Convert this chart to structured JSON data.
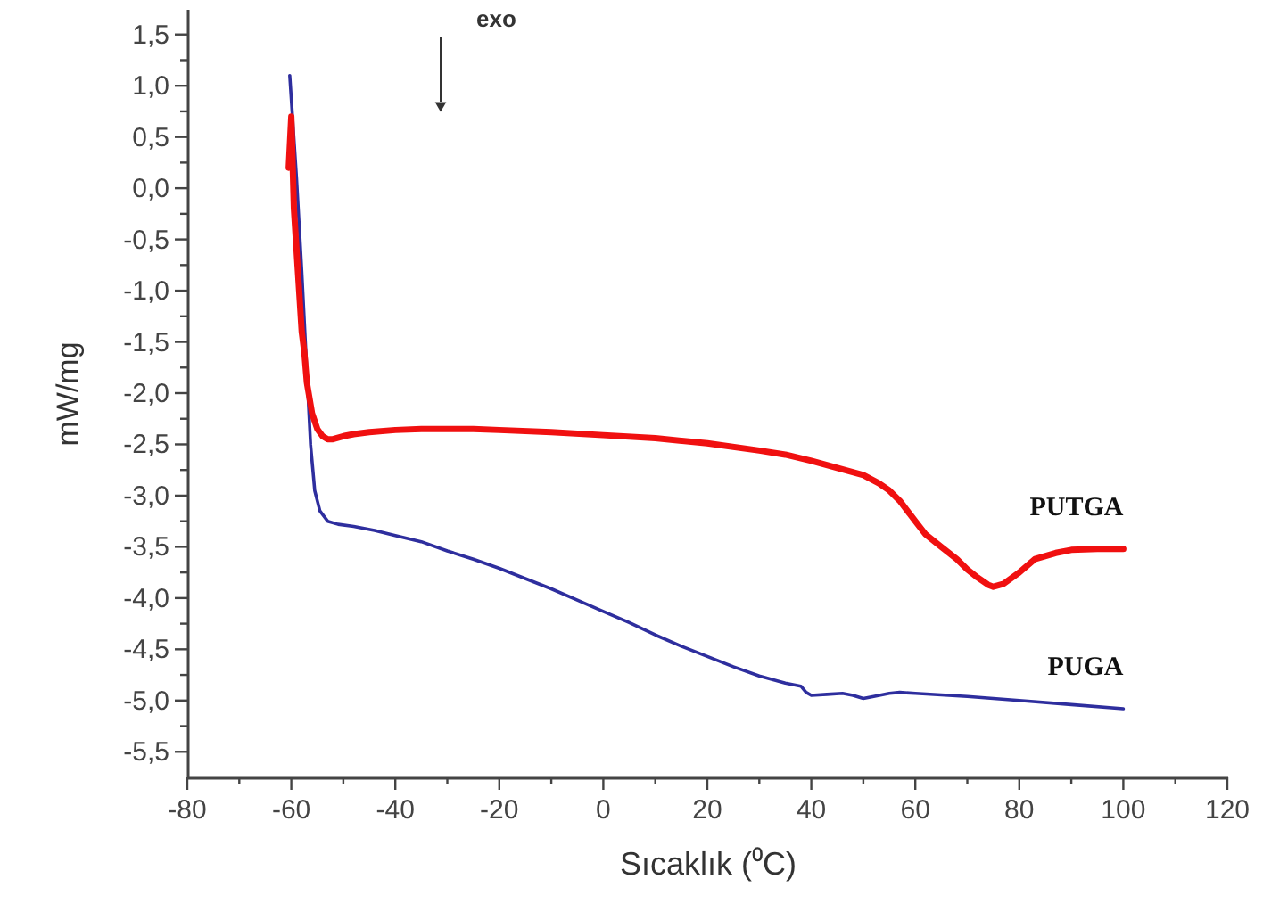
{
  "chart_data": {
    "type": "line",
    "xlabel": "Sıcaklık (⁰C)",
    "ylabel": "mW/mg",
    "annotations": [
      "exo"
    ],
    "legend": false,
    "grid": false,
    "marker": "none",
    "line_style": "solid",
    "xlim": [
      -80,
      120
    ],
    "ylim": [
      -5.75,
      1.75
    ],
    "xticks": [
      -80,
      {
        "value": -70,
        "label": null
      },
      -60,
      {
        "value": -50,
        "label": null
      },
      -40,
      {
        "value": -30,
        "label": null
      },
      -20,
      {
        "value": -10,
        "label": null
      },
      0,
      {
        "value": 10,
        "label": null
      },
      20,
      {
        "value": 30,
        "label": null
      },
      40,
      {
        "value": 50,
        "label": null
      },
      60,
      {
        "value": 70,
        "label": null
      },
      80,
      {
        "value": 90,
        "label": null
      },
      100,
      {
        "value": 110,
        "label": null
      },
      120
    ],
    "yticks": [
      {
        "value": 1.5,
        "label": "1,5"
      },
      {
        "value": 1.25,
        "label": null
      },
      {
        "value": 1,
        "label": "1,0"
      },
      {
        "value": 0.75,
        "label": null
      },
      {
        "value": 0.5,
        "label": "0,5"
      },
      {
        "value": 0.25,
        "label": null
      },
      {
        "value": 0,
        "label": "0,0"
      },
      {
        "value": -0.25,
        "label": null
      },
      {
        "value": -0.5,
        "label": "-0,5"
      },
      {
        "value": -0.75,
        "label": null
      },
      {
        "value": -1,
        "label": "-1,0"
      },
      {
        "value": -1.25,
        "label": null
      },
      {
        "value": -1.5,
        "label": "-1,5"
      },
      {
        "value": -1.75,
        "label": null
      },
      {
        "value": -2,
        "label": "-2,0"
      },
      {
        "value": -2.25,
        "label": null
      },
      {
        "value": -2.5,
        "label": "-2,5"
      },
      {
        "value": -2.75,
        "label": null
      },
      {
        "value": -3,
        "label": "-3,0"
      },
      {
        "value": -3.25,
        "label": null
      },
      {
        "value": -3.5,
        "label": "-3,5"
      },
      {
        "value": -3.75,
        "label": null
      },
      {
        "value": -4,
        "label": "-4,0"
      },
      {
        "value": -4.25,
        "label": null
      },
      {
        "value": -4.5,
        "label": "-4,5"
      },
      {
        "value": -4.75,
        "label": null
      },
      {
        "value": -5,
        "label": "-5,0"
      },
      {
        "value": -5.25,
        "label": null
      },
      {
        "value": -5.5,
        "label": "-5,5"
      }
    ],
    "series": [
      {
        "name": "PUGA",
        "color": "#2e2e9e",
        "x": [
          -60.3,
          -59,
          -58,
          -57,
          -56.3,
          -55.5,
          -54.5,
          -53,
          -51,
          -48,
          -44,
          -40,
          -35,
          -30,
          -25,
          -20,
          -15,
          -10,
          -5,
          0,
          5,
          10,
          15,
          20,
          25,
          30,
          35,
          38,
          39,
          40,
          43,
          46,
          48,
          50,
          52,
          55,
          57,
          60,
          70,
          80,
          90,
          100
        ],
        "values": [
          1.1,
          0.1,
          -0.8,
          -1.8,
          -2.5,
          -2.95,
          -3.15,
          -3.25,
          -3.28,
          -3.3,
          -3.34,
          -3.39,
          -3.45,
          -3.54,
          -3.62,
          -3.71,
          -3.81,
          -3.91,
          -4.02,
          -4.13,
          -4.24,
          -4.36,
          -4.47,
          -4.57,
          -4.67,
          -4.76,
          -4.83,
          -4.86,
          -4.92,
          -4.95,
          -4.94,
          -4.93,
          -4.95,
          -4.98,
          -4.96,
          -4.93,
          -4.92,
          -4.93,
          -4.96,
          -5.0,
          -5.04,
          -5.08
        ]
      },
      {
        "name": "PUTGA",
        "color": "#f01010",
        "x": [
          -60.5,
          -60,
          -59.5,
          -59,
          -58.5,
          -58,
          -57.5,
          -57,
          -56,
          -55,
          -54,
          -53,
          -52,
          -50,
          -48,
          -45,
          -40,
          -35,
          -30,
          -25,
          -20,
          -10,
          0,
          10,
          20,
          30,
          35,
          40,
          45,
          50,
          53,
          55,
          57,
          60,
          62,
          65,
          68,
          70,
          72,
          74,
          75,
          77,
          80,
          83,
          87,
          90,
          95,
          100
        ],
        "values": [
          0.2,
          0.7,
          -0.2,
          -0.6,
          -1.0,
          -1.4,
          -1.6,
          -1.9,
          -2.2,
          -2.35,
          -2.42,
          -2.45,
          -2.45,
          -2.42,
          -2.4,
          -2.38,
          -2.36,
          -2.35,
          -2.35,
          -2.35,
          -2.36,
          -2.38,
          -2.41,
          -2.44,
          -2.49,
          -2.56,
          -2.6,
          -2.66,
          -2.73,
          -2.8,
          -2.88,
          -2.95,
          -3.05,
          -3.25,
          -3.38,
          -3.5,
          -3.62,
          -3.72,
          -3.8,
          -3.87,
          -3.89,
          -3.86,
          -3.75,
          -3.62,
          -3.56,
          -3.53,
          -3.52,
          -3.52
        ]
      }
    ]
  }
}
